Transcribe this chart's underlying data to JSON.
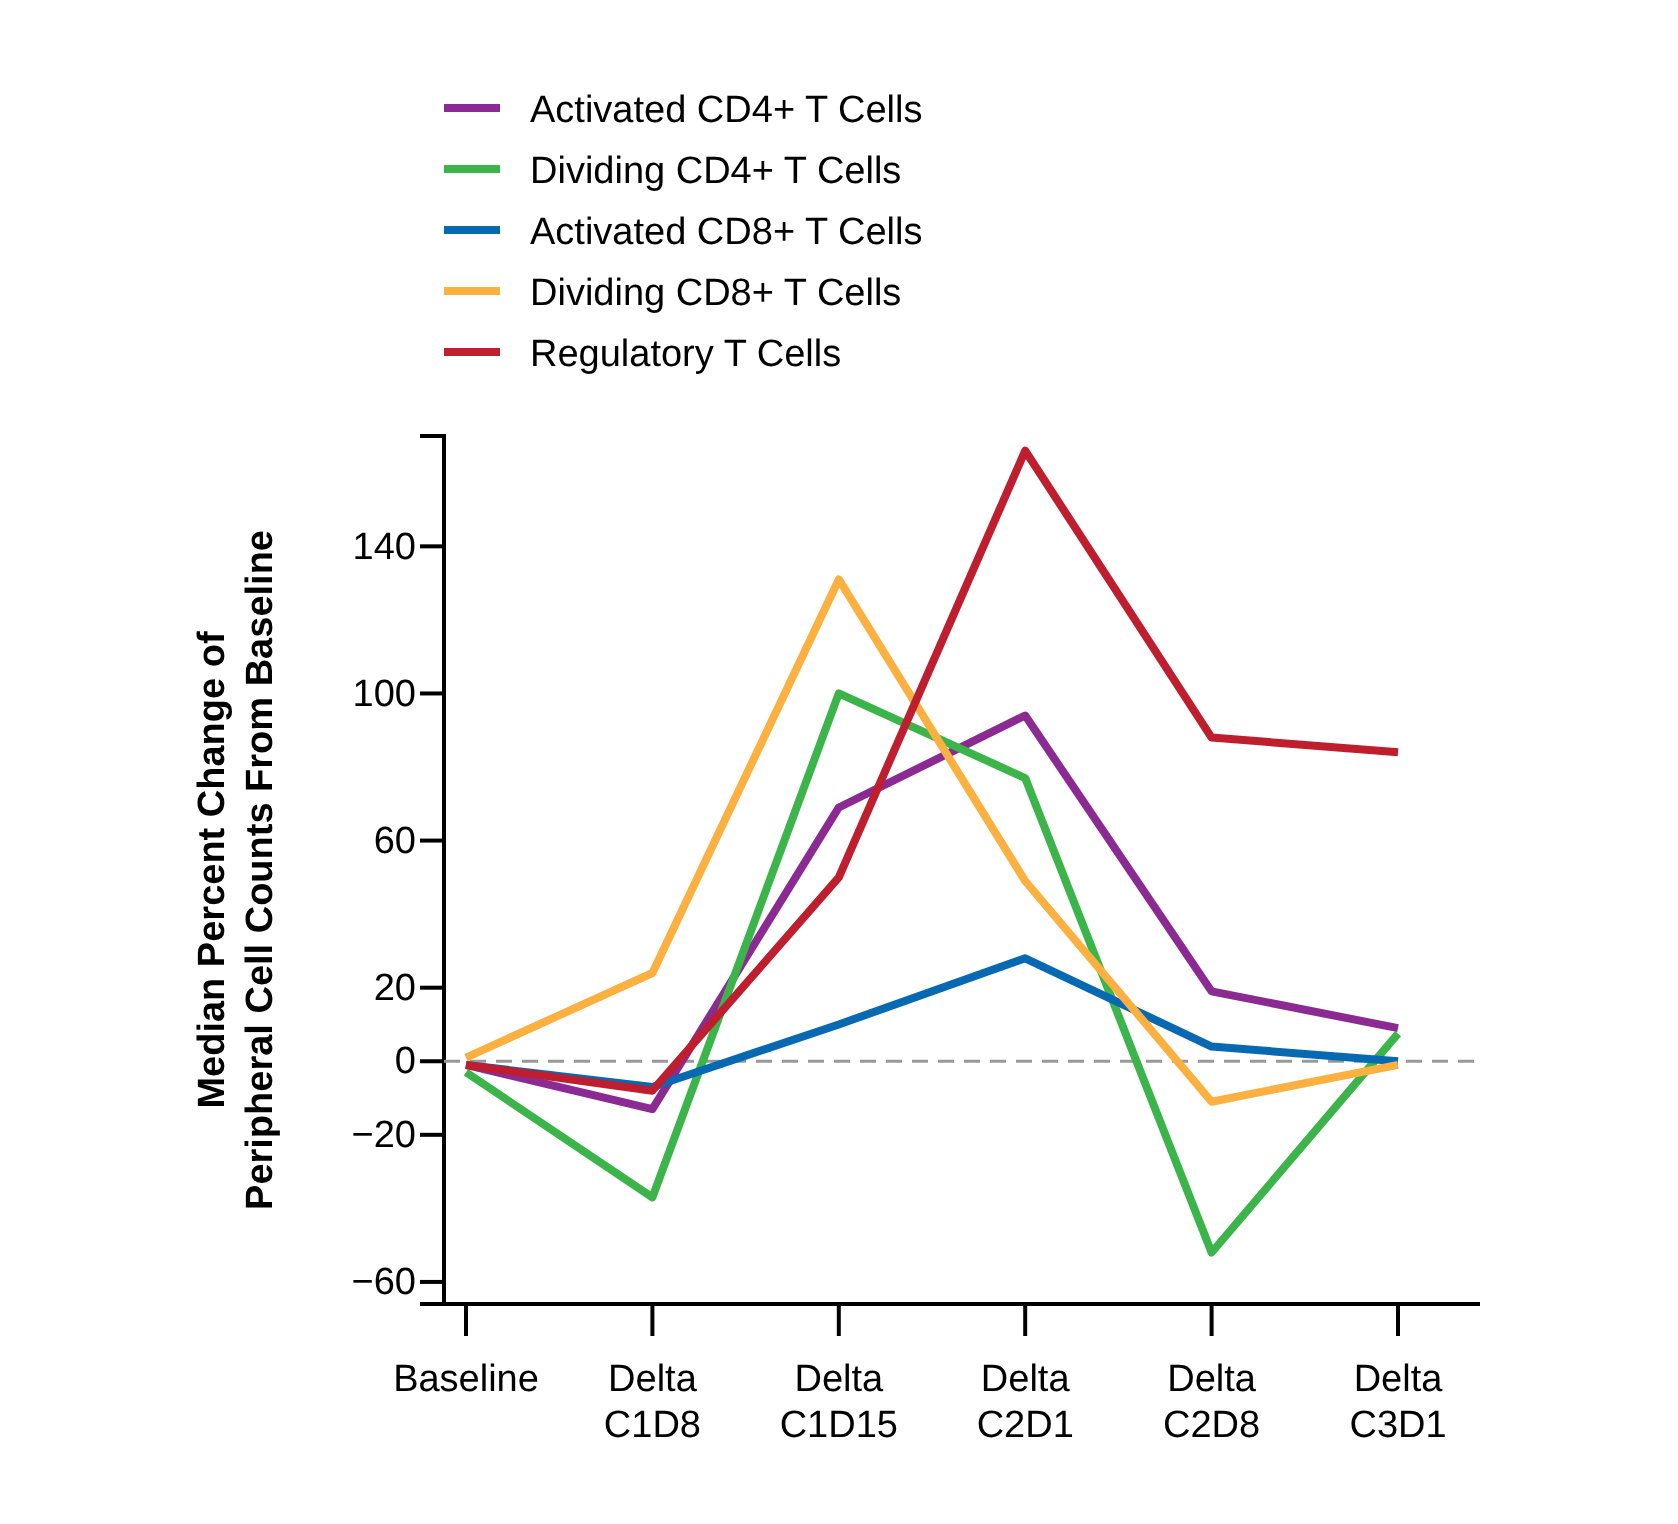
{
  "chart_data": {
    "type": "line",
    "ylabel": "Median Percent Change of\nPeripheral Cell Counts From Baseline",
    "categories": [
      "Baseline",
      "Delta C1D8",
      "Delta C1D15",
      "Delta C2D1",
      "Delta C2D8",
      "Delta C3D1"
    ],
    "series": [
      {
        "name": "Activated CD4+ T Cells",
        "color": "#8b2a92",
        "values": [
          -1,
          -13,
          69,
          94,
          19,
          9
        ]
      },
      {
        "name": "Dividing CD4+ T Cells",
        "color": "#3bb54a",
        "values": [
          -3,
          -37,
          100,
          77,
          -52,
          7.5
        ]
      },
      {
        "name": "Activated CD8+ T Cells",
        "color": "#0769b1",
        "values": [
          -1,
          -7,
          10,
          28,
          4,
          0
        ]
      },
      {
        "name": "Dividing CD8+ T Cells",
        "color": "#fbb040",
        "values": [
          1,
          24,
          131,
          49,
          -11,
          -1
        ]
      },
      {
        "name": "Regulatory T Cells",
        "color": "#be1e2d",
        "values": [
          -1,
          -8,
          50,
          166,
          88,
          84
        ]
      }
    ],
    "ylim": [
      -66,
      170
    ],
    "yticks": [
      {
        "value": -60,
        "label": "−60"
      },
      {
        "value": -20,
        "label": "−20"
      },
      0,
      20,
      60,
      100,
      140
    ],
    "ref_lines": [
      {
        "axis": "y",
        "value": 0,
        "color": "#999999",
        "line_style": "dashed"
      }
    ],
    "legend": "top",
    "grid": false,
    "marker": "none",
    "line_style": "solid"
  }
}
